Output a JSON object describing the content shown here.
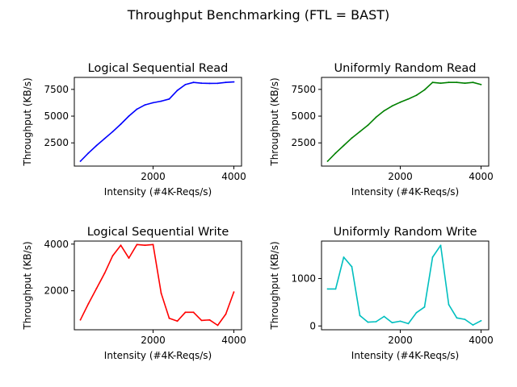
{
  "figure": {
    "suptitle": "Throughput Benchmarking (FTL = BAST)"
  },
  "chart_data": [
    {
      "type": "line",
      "title": "Logical Sequential Read",
      "xlabel": "Intensity (#4K-Reqs/s)",
      "ylabel": "Throughput (KB/s)",
      "xlim": [
        50,
        4190
      ],
      "ylim": [
        330,
        8620
      ],
      "xticks": [
        2000,
        4000
      ],
      "xtick_labels": [
        "2000",
        "4000"
      ],
      "yticks": [
        2500,
        5000,
        7500
      ],
      "ytick_labels": [
        "2500",
        "5000",
        "7500"
      ],
      "color": "#0000ff",
      "series": [
        {
          "x": [
            200,
            400,
            600,
            800,
            1000,
            1200,
            1400,
            1600,
            1800,
            2000,
            2200,
            2400,
            2600,
            2800,
            3000,
            3200,
            3400,
            3600,
            3800,
            4000
          ],
          "values": [
            780,
            1550,
            2250,
            2900,
            3550,
            4250,
            5000,
            5650,
            6050,
            6250,
            6400,
            6600,
            7400,
            7950,
            8150,
            8080,
            8060,
            8070,
            8150,
            8200
          ]
        }
      ]
    },
    {
      "type": "line",
      "title": "Uniformly Random Read",
      "xlabel": "Intensity (#4K-Reqs/s)",
      "ylabel": "Throughput (KB/s)",
      "xlim": [
        50,
        4190
      ],
      "ylim": [
        330,
        8620
      ],
      "xticks": [
        2000,
        4000
      ],
      "xtick_labels": [
        "2000",
        "4000"
      ],
      "yticks": [
        2500,
        5000,
        7500
      ],
      "ytick_labels": [
        "2500",
        "5000",
        "7500"
      ],
      "color": "#008000",
      "series": [
        {
          "x": [
            200,
            400,
            600,
            800,
            1000,
            1200,
            1400,
            1600,
            1800,
            2000,
            2200,
            2400,
            2600,
            2800,
            3000,
            3200,
            3400,
            3600,
            3800,
            4000
          ],
          "values": [
            780,
            1550,
            2250,
            2950,
            3550,
            4150,
            4900,
            5500,
            5950,
            6300,
            6600,
            6950,
            7450,
            8150,
            8080,
            8150,
            8150,
            8080,
            8150,
            7950
          ]
        }
      ]
    },
    {
      "type": "line",
      "title": "Logical Sequential Write",
      "xlabel": "Intensity (#4K-Reqs/s)",
      "ylabel": "Throughput (KB/s)",
      "xlim": [
        50,
        4190
      ],
      "ylim": [
        330,
        4130
      ],
      "xticks": [
        2000,
        4000
      ],
      "xtick_labels": [
        "2000",
        "4000"
      ],
      "yticks": [
        2000,
        4000
      ],
      "ytick_labels": [
        "2000",
        "4000"
      ],
      "color": "#ff0000",
      "series": [
        {
          "x": [
            200,
            400,
            600,
            800,
            1000,
            1200,
            1400,
            1600,
            1800,
            2000,
            2200,
            2400,
            2600,
            2800,
            3000,
            3200,
            3400,
            3600,
            3800,
            4000
          ],
          "values": [
            750,
            1450,
            2100,
            2750,
            3500,
            3950,
            3400,
            3980,
            3950,
            3980,
            1900,
            820,
            700,
            1080,
            1080,
            730,
            750,
            520,
            1000,
            1950
          ]
        }
      ]
    },
    {
      "type": "line",
      "title": "Uniformly Random Write",
      "xlabel": "Intensity (#4K-Reqs/s)",
      "ylabel": "Throughput (KB/s)",
      "xlim": [
        50,
        4190
      ],
      "ylim": [
        -80,
        1790
      ],
      "xticks": [
        2000,
        4000
      ],
      "xtick_labels": [
        "2000",
        "4000"
      ],
      "yticks": [
        0,
        1000
      ],
      "ytick_labels": [
        "0",
        "1000"
      ],
      "color": "#00bfbf",
      "series": [
        {
          "x": [
            200,
            400,
            600,
            800,
            1000,
            1200,
            1400,
            1600,
            1800,
            2000,
            2200,
            2400,
            2600,
            2800,
            3000,
            3200,
            3400,
            3600,
            3800,
            4000
          ],
          "values": [
            780,
            780,
            1450,
            1250,
            220,
            80,
            90,
            200,
            70,
            100,
            50,
            280,
            400,
            1450,
            1700,
            450,
            170,
            140,
            20,
            110
          ]
        }
      ]
    }
  ]
}
